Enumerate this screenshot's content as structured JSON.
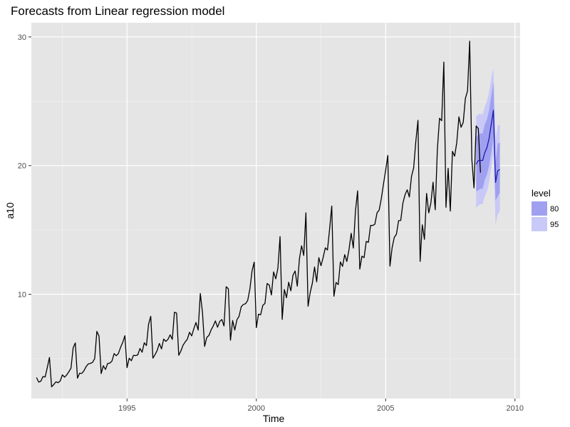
{
  "chart_data": {
    "type": "line",
    "title": "Forecasts from Linear regression model",
    "xlabel": "Time",
    "ylabel": "a10",
    "xlim": [
      1991.3,
      2010.2
    ],
    "ylim": [
      1.9,
      31.1
    ],
    "x_ticks": [
      1995,
      2000,
      2005,
      2010
    ],
    "y_ticks": [
      10,
      20,
      30
    ],
    "grid": true,
    "legend": {
      "title": "level",
      "position": "right",
      "entries": [
        {
          "label": "80",
          "color": "#a0a0f0"
        },
        {
          "label": "95",
          "color": "#c9c9f8"
        }
      ]
    },
    "series": [
      {
        "kind": "history",
        "color": "#000000",
        "start": 1991.5,
        "frequency": 12,
        "values": [
          3.53,
          3.18,
          3.25,
          3.61,
          3.57,
          4.31,
          5.09,
          2.81,
          2.99,
          3.2,
          3.13,
          3.27,
          3.74,
          3.56,
          3.73,
          3.98,
          4.26,
          5.85,
          6.22,
          3.48,
          3.87,
          3.85,
          4.06,
          4.38,
          4.59,
          4.63,
          4.71,
          5.01,
          7.12,
          6.75,
          3.84,
          4.45,
          4.16,
          4.62,
          4.65,
          4.81,
          5.39,
          5.23,
          5.4,
          5.88,
          6.26,
          6.78,
          4.3,
          5.03,
          4.84,
          5.26,
          5.24,
          5.3,
          5.79,
          5.5,
          6.23,
          6.02,
          7.68,
          8.29,
          5.04,
          5.31,
          5.64,
          6.18,
          5.76,
          6.52,
          6.34,
          6.5,
          6.85,
          6.5,
          8.61,
          8.54,
          5.26,
          5.6,
          6.05,
          6.3,
          6.52,
          7.05,
          6.77,
          7.33,
          7.81,
          7.22,
          10.06,
          8.61,
          5.95,
          6.65,
          6.8,
          7.23,
          7.54,
          7.93,
          7.44,
          7.89,
          8.04,
          7.54,
          10.59,
          10.43,
          6.43,
          7.96,
          7.22,
          8.02,
          8.3,
          9.04,
          9.21,
          9.27,
          9.53,
          10.41,
          11.81,
          12.5,
          7.41,
          8.45,
          8.41,
          9.14,
          9.29,
          10.84,
          10.72,
          9.95,
          11.74,
          11.2,
          12.02,
          14.49,
          8.05,
          10.37,
          9.73,
          10.94,
          10.27,
          11.49,
          11.81,
          10.63,
          12.78,
          13.77,
          13.02,
          16.33,
          9.07,
          10.15,
          10.87,
          12.12,
          10.97,
          12.85,
          12.22,
          12.86,
          13.61,
          13.44,
          15.08,
          16.86,
          9.85,
          10.92,
          10.75,
          12.52,
          12.17,
          13.08,
          12.55,
          13.48,
          14.74,
          13.59,
          16.5,
          18.04,
          11.96,
          12.96,
          12.85,
          14.11,
          14.04,
          15.35,
          15.35,
          15.45,
          16.33,
          16.55,
          17.45,
          18.57,
          19.64,
          20.79,
          12.19,
          13.62,
          14.42,
          14.67,
          15.72,
          15.74,
          17.08,
          17.74,
          18.12,
          17.56,
          19.16,
          19.83,
          21.88,
          23.52,
          12.56,
          15.4,
          14.27,
          17.84,
          16.33,
          17.11,
          18.71,
          16.57,
          21.27,
          23.68,
          23.49,
          28.04,
          16.76,
          19.79,
          16.47,
          21.11,
          20.73,
          21.79,
          23.79,
          22.98,
          23.36,
          25.23,
          25.81,
          29.67,
          20.47,
          18.27,
          23.08,
          22.87,
          19.46
        ]
      },
      {
        "kind": "forecast",
        "color": "#1919b0",
        "start": 2008.5,
        "frequency": 12,
        "values": [
          20.1,
          20.4,
          20.4,
          20.4,
          21.0,
          21.4,
          22.1,
          23.2,
          24.3,
          18.7,
          19.6,
          19.7
        ],
        "pi80_lo": [
          18.0,
          18.1,
          18.2,
          18.2,
          18.9,
          19.3,
          20.0,
          21.0,
          22.2,
          17.3,
          17.6,
          17.9
        ],
        "pi80_hi": [
          22.2,
          22.4,
          22.5,
          22.5,
          23.2,
          23.6,
          24.3,
          25.4,
          26.5,
          20.3,
          21.7,
          21.8
        ],
        "pi95_lo": [
          16.7,
          16.9,
          17.0,
          17.0,
          17.6,
          18.0,
          18.7,
          19.8,
          21.0,
          15.4,
          16.2,
          16.5
        ],
        "pi95_hi": [
          23.8,
          24.0,
          24.0,
          24.0,
          24.6,
          25.0,
          25.7,
          26.8,
          27.6,
          21.9,
          23.1,
          23.2
        ]
      }
    ]
  }
}
